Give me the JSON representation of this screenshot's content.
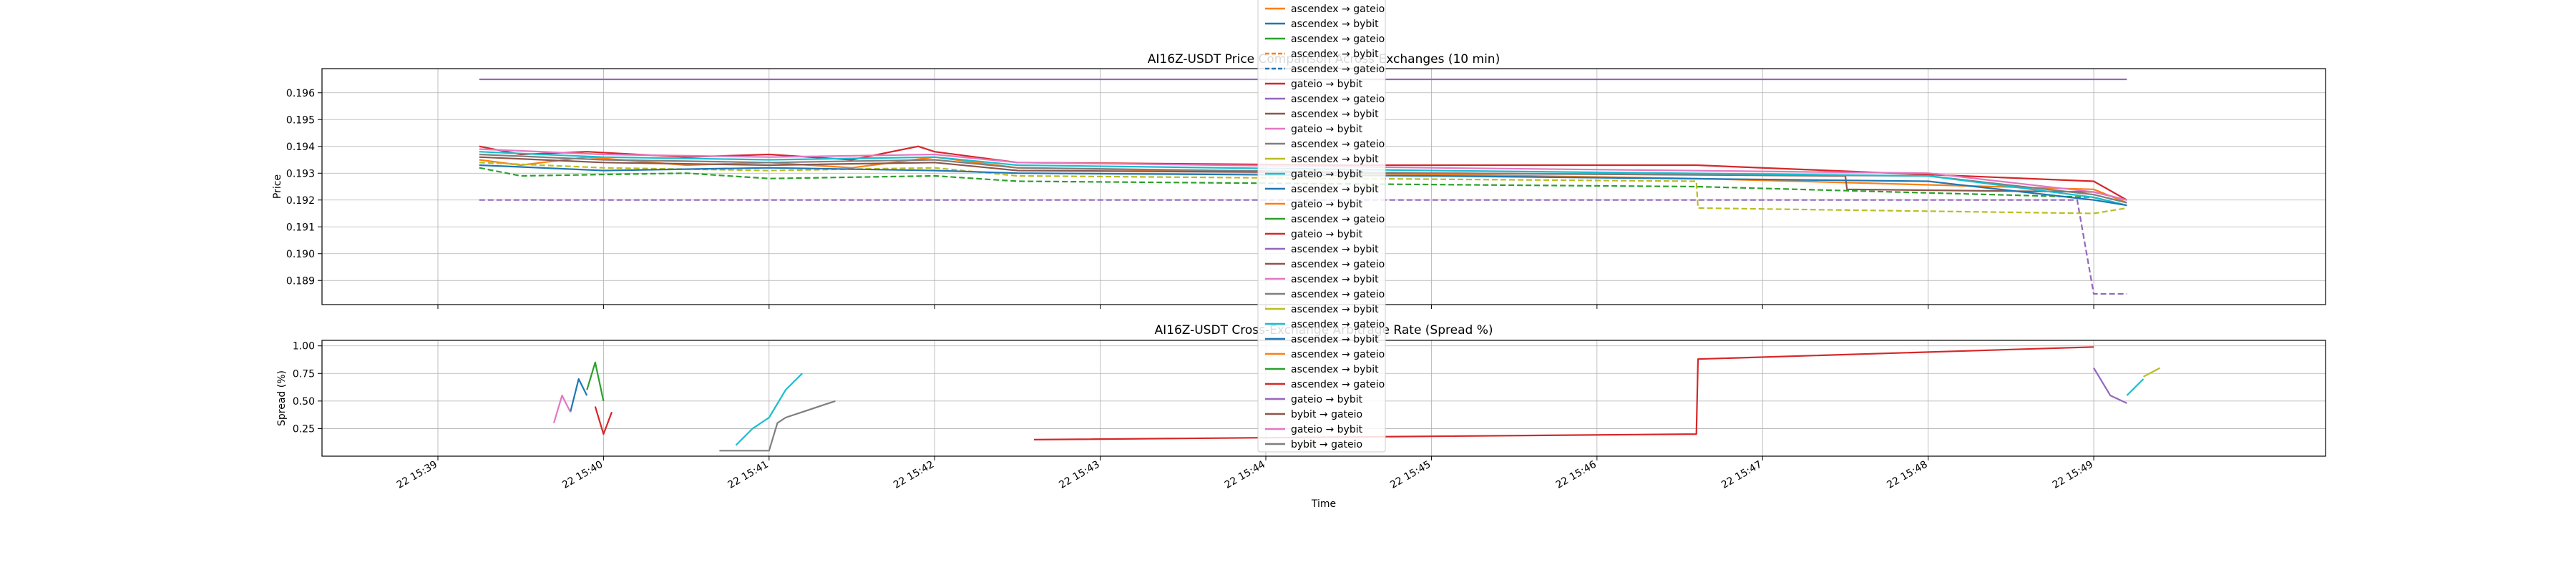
{
  "chart_data": [
    {
      "type": "line",
      "title": "AI16Z-USDT Price Comparison Across Exchanges (10 min)",
      "xlabel": "",
      "ylabel": "Price",
      "ylim": [
        0.1881,
        0.1969
      ],
      "y_ticks": [
        0.189,
        0.19,
        0.191,
        0.192,
        0.193,
        0.194,
        0.195,
        0.196
      ],
      "x_ticks": [
        "22 15:39",
        "22 15:40",
        "22 15:41",
        "22 15:42",
        "22 15:43",
        "22 15:44",
        "22 15:45",
        "22 15:46",
        "22 15:47",
        "22 15:48",
        "22 15:49"
      ],
      "grid": true,
      "legend": "upper center",
      "series": [
        {
          "name": "ascendex → gateio",
          "color": "#ff7f0e",
          "style": "solid",
          "x": [
            39.25,
            39.5,
            39.9,
            40.5,
            41.0,
            41.5,
            42.0,
            42.5,
            44.5,
            46.6,
            49.0,
            49.2
          ],
          "y": [
            0.1935,
            0.1933,
            0.1936,
            0.1933,
            0.1934,
            0.1932,
            0.1936,
            0.1932,
            0.193,
            0.1928,
            0.1924,
            0.1919
          ]
        },
        {
          "name": "ascendex → bybit",
          "color": "#d62728",
          "style": "solid",
          "x": [
            39.25,
            39.5,
            39.9,
            40.5,
            41.0,
            41.5,
            41.9,
            42.0,
            42.5,
            44.5,
            46.6,
            49.0,
            49.2
          ],
          "y": [
            0.194,
            0.1937,
            0.1938,
            0.1936,
            0.1937,
            0.1935,
            0.194,
            0.1938,
            0.1934,
            0.1933,
            0.1933,
            0.1927,
            0.192
          ]
        },
        {
          "name": "gateio → bybit",
          "color": "#9467bd",
          "style": "dashed",
          "x": [
            39.25,
            44.0,
            48.9,
            49.0,
            49.2
          ],
          "y": [
            0.192,
            0.192,
            0.192,
            0.1885,
            0.1885
          ]
        },
        {
          "name": "bybit → gateio",
          "color": "#9467bd",
          "style": "solid",
          "x": [
            39.25,
            49.2
          ],
          "y": [
            0.1965,
            0.1965
          ]
        },
        {
          "name": "ascendex → gateio",
          "color": "#2ca02c",
          "style": "dashed",
          "x": [
            39.25,
            39.5,
            40.5,
            41.0,
            42.0,
            42.5,
            44.5,
            46.6,
            49.0,
            49.2
          ],
          "y": [
            0.1932,
            0.1929,
            0.193,
            0.1928,
            0.1929,
            0.1927,
            0.1926,
            0.1925,
            0.1921,
            0.1918
          ]
        },
        {
          "name": "ascendex → bybit",
          "color": "#bcbd22",
          "style": "dashed",
          "x": [
            39.25,
            40.0,
            41.0,
            42.0,
            42.5,
            44.5,
            46.6,
            46.61,
            49.0,
            49.2
          ],
          "y": [
            0.1934,
            0.1932,
            0.1931,
            0.1932,
            0.1929,
            0.1928,
            0.1927,
            0.1917,
            0.1915,
            0.1917
          ]
        },
        {
          "name": "gateio → bybit",
          "color": "#8c564b",
          "style": "solid",
          "x": [
            39.25,
            40.0,
            41.0,
            42.0,
            42.5,
            45.0,
            47.5,
            47.51,
            49.0,
            49.2
          ],
          "y": [
            0.1936,
            0.1934,
            0.1933,
            0.1934,
            0.1931,
            0.193,
            0.1929,
            0.1924,
            0.1923,
            0.192
          ]
        },
        {
          "name": "ascendex → gateio",
          "color": "#7f7f7f",
          "style": "solid",
          "x": [
            39.25,
            40.0,
            41.0,
            42.0,
            42.5,
            45.0,
            48.0,
            49.0,
            49.2
          ],
          "y": [
            0.1937,
            0.1935,
            0.1934,
            0.1935,
            0.1932,
            0.193,
            0.1929,
            0.1922,
            0.1919
          ]
        },
        {
          "name": "ascendex → bybit",
          "color": "#17becf",
          "style": "solid",
          "x": [
            39.25,
            40.0,
            41.0,
            42.0,
            42.5,
            45.0,
            48.0,
            49.0,
            49.2
          ],
          "y": [
            0.1938,
            0.1936,
            0.1935,
            0.1936,
            0.1933,
            0.1931,
            0.1929,
            0.1921,
            0.1918
          ]
        },
        {
          "name": "gateio → bybit",
          "color": "#e377c2",
          "style": "solid",
          "x": [
            39.25,
            40.0,
            41.0,
            42.0,
            42.5,
            45.0,
            48.0,
            49.0,
            49.2
          ],
          "y": [
            0.1939,
            0.1937,
            0.1936,
            0.1937,
            0.1934,
            0.1932,
            0.193,
            0.1923,
            0.192
          ]
        },
        {
          "name": "ascendex → gateio",
          "color": "#1f77b4",
          "style": "solid",
          "x": [
            39.25,
            40.0,
            41.0,
            42.0,
            42.5,
            45.0,
            48.0,
            49.0,
            49.2
          ],
          "y": [
            0.1933,
            0.1931,
            0.1932,
            0.1931,
            0.193,
            0.1929,
            0.1927,
            0.192,
            0.1918
          ]
        }
      ]
    },
    {
      "type": "line",
      "title": "AI16Z-USDT Cross-Exchange Arbitrage Rate (Spread %)",
      "xlabel": "Time",
      "ylabel": "Spread (%)",
      "ylim": [
        0.0,
        1.05
      ],
      "y_ticks": [
        0.25,
        0.5,
        0.75,
        1.0
      ],
      "x_ticks": [
        "22 15:39",
        "22 15:40",
        "22 15:41",
        "22 15:42",
        "22 15:43",
        "22 15:44",
        "22 15:45",
        "22 15:46",
        "22 15:47",
        "22 15:48",
        "22 15:49"
      ],
      "grid": true,
      "series": [
        {
          "name": "ascendex → gateio",
          "color": "#d62728",
          "x": [
            42.6,
            46.6,
            46.61,
            49.0
          ],
          "y": [
            0.15,
            0.2,
            0.88,
            0.99
          ]
        },
        {
          "name": "ascendex → gateio",
          "color": "#17becf",
          "x": [
            40.8,
            40.9,
            41.0,
            41.1,
            41.2
          ],
          "y": [
            0.1,
            0.25,
            0.35,
            0.6,
            0.75
          ]
        },
        {
          "name": "bybit → gateio",
          "color": "#7f7f7f",
          "x": [
            40.7,
            41.0,
            41.05,
            41.1,
            41.2,
            41.3,
            41.4
          ],
          "y": [
            0.05,
            0.05,
            0.3,
            0.35,
            0.4,
            0.45,
            0.5
          ]
        },
        {
          "name": "gateio → bybit",
          "color": "#9467bd",
          "x": [
            49.0,
            49.1,
            49.2
          ],
          "y": [
            0.8,
            0.55,
            0.48
          ]
        },
        {
          "name": "ascendex → bybit",
          "color": "#17becf",
          "x": [
            49.2,
            49.3
          ],
          "y": [
            0.55,
            0.7
          ]
        },
        {
          "name": "ascendex → gateio",
          "color": "#bcbd22",
          "x": [
            49.3,
            49.4
          ],
          "y": [
            0.72,
            0.8
          ]
        },
        {
          "name": "ascendex → bybit",
          "color": "#1f77b4",
          "x": [
            39.8,
            39.85,
            39.9
          ],
          "y": [
            0.4,
            0.7,
            0.55
          ]
        },
        {
          "name": "ascendex → gateio",
          "color": "#2ca02c",
          "x": [
            39.9,
            39.95,
            40.0
          ],
          "y": [
            0.6,
            0.85,
            0.5
          ]
        },
        {
          "name": "gateio → bybit",
          "color": "#e377c2",
          "x": [
            39.7,
            39.75,
            39.8
          ],
          "y": [
            0.3,
            0.55,
            0.4
          ]
        },
        {
          "name": "ascendex → bybit",
          "color": "#d62728",
          "x": [
            39.95,
            40.0,
            40.05
          ],
          "y": [
            0.45,
            0.2,
            0.4
          ]
        }
      ]
    }
  ],
  "legend": {
    "entries": [
      {
        "label": "ascendex → gateio",
        "color": "#ff7f0e",
        "style": "solid"
      },
      {
        "label": "ascendex → bybit",
        "color": "#1f77b4",
        "style": "solid"
      },
      {
        "label": "ascendex → gateio",
        "color": "#2ca02c",
        "style": "solid"
      },
      {
        "label": "ascendex → bybit",
        "color": "#ff7f0e",
        "style": "dashed"
      },
      {
        "label": "ascendex → gateio",
        "color": "#1f77b4",
        "style": "dashed"
      },
      {
        "label": "gateio → bybit",
        "color": "#d62728",
        "style": "solid"
      },
      {
        "label": "ascendex → gateio",
        "color": "#9467bd",
        "style": "solid"
      },
      {
        "label": "ascendex → bybit",
        "color": "#8c564b",
        "style": "solid"
      },
      {
        "label": "gateio → bybit",
        "color": "#e377c2",
        "style": "solid"
      },
      {
        "label": "ascendex → gateio",
        "color": "#7f7f7f",
        "style": "solid"
      },
      {
        "label": "ascendex → bybit",
        "color": "#bcbd22",
        "style": "solid"
      },
      {
        "label": "gateio → bybit",
        "color": "#17becf",
        "style": "solid"
      },
      {
        "label": "ascendex → bybit",
        "color": "#1f77b4",
        "style": "solid"
      },
      {
        "label": "gateio → bybit",
        "color": "#ff7f0e",
        "style": "solid"
      },
      {
        "label": "ascendex → gateio",
        "color": "#2ca02c",
        "style": "solid"
      },
      {
        "label": "gateio → bybit",
        "color": "#d62728",
        "style": "solid"
      },
      {
        "label": "ascendex → bybit",
        "color": "#9467bd",
        "style": "solid"
      },
      {
        "label": "ascendex → gateio",
        "color": "#8c564b",
        "style": "solid"
      },
      {
        "label": "ascendex → bybit",
        "color": "#e377c2",
        "style": "solid"
      },
      {
        "label": "ascendex → gateio",
        "color": "#7f7f7f",
        "style": "solid"
      },
      {
        "label": "ascendex → bybit",
        "color": "#bcbd22",
        "style": "solid"
      },
      {
        "label": "ascendex → gateio",
        "color": "#17becf",
        "style": "solid"
      },
      {
        "label": "ascendex → bybit",
        "color": "#1f77b4",
        "style": "solid"
      },
      {
        "label": "ascendex → gateio",
        "color": "#ff7f0e",
        "style": "solid"
      },
      {
        "label": "ascendex → bybit",
        "color": "#2ca02c",
        "style": "solid"
      },
      {
        "label": "ascendex → gateio",
        "color": "#d62728",
        "style": "solid"
      },
      {
        "label": "gateio → bybit",
        "color": "#9467bd",
        "style": "solid"
      },
      {
        "label": "bybit → gateio",
        "color": "#8c564b",
        "style": "solid"
      },
      {
        "label": "gateio → bybit",
        "color": "#e377c2",
        "style": "solid"
      },
      {
        "label": "bybit → gateio",
        "color": "#7f7f7f",
        "style": "solid"
      }
    ]
  }
}
